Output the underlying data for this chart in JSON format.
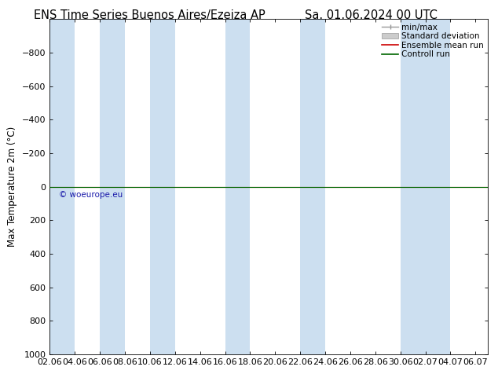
{
  "title_left": "ENS Time Series Buenos Aires/Ezeiza AP",
  "title_right": "Sa. 01.06.2024 00 UTC",
  "ylabel": "Max Temperature 2m (°C)",
  "watermark": "© woeurope.eu",
  "watermark_color": "#1a1aaa",
  "xlim_start": 0,
  "xlim_end": 35,
  "ylim_bottom": 1000,
  "ylim_top": -1000,
  "yticks": [
    -800,
    -600,
    -400,
    -200,
    0,
    200,
    400,
    600,
    800,
    1000
  ],
  "xtick_labels": [
    "02.06",
    "04.06",
    "06.06",
    "08.06",
    "10.06",
    "12.06",
    "14.06",
    "16.06",
    "18.06",
    "20.06",
    "22.06",
    "24.06",
    "26.06",
    "28.06",
    "30.06",
    "02.07",
    "04.07",
    "06.07"
  ],
  "xtick_positions": [
    0,
    2,
    4,
    6,
    8,
    10,
    12,
    14,
    16,
    18,
    20,
    22,
    24,
    26,
    28,
    30,
    32,
    34
  ],
  "bg_stripe_positions": [
    0,
    4,
    8,
    14,
    20,
    28
  ],
  "bg_stripe_widths": [
    2,
    2,
    2,
    2,
    2,
    4
  ],
  "bg_stripe_color": "#ccdff0",
  "line_y": 0,
  "ensemble_mean_color": "#cc0000",
  "control_run_color": "#006600",
  "minmax_color": "#999999",
  "stddev_color": "#cccccc",
  "legend_entries": [
    "min/max",
    "Standard deviation",
    "Ensemble mean run",
    "Controll run"
  ],
  "legend_line_colors": [
    "#999999",
    "#cccccc",
    "#cc0000",
    "#006600"
  ],
  "title_fontsize": 10.5,
  "axis_fontsize": 8.5,
  "tick_fontsize": 8,
  "background_color": "#ffffff"
}
